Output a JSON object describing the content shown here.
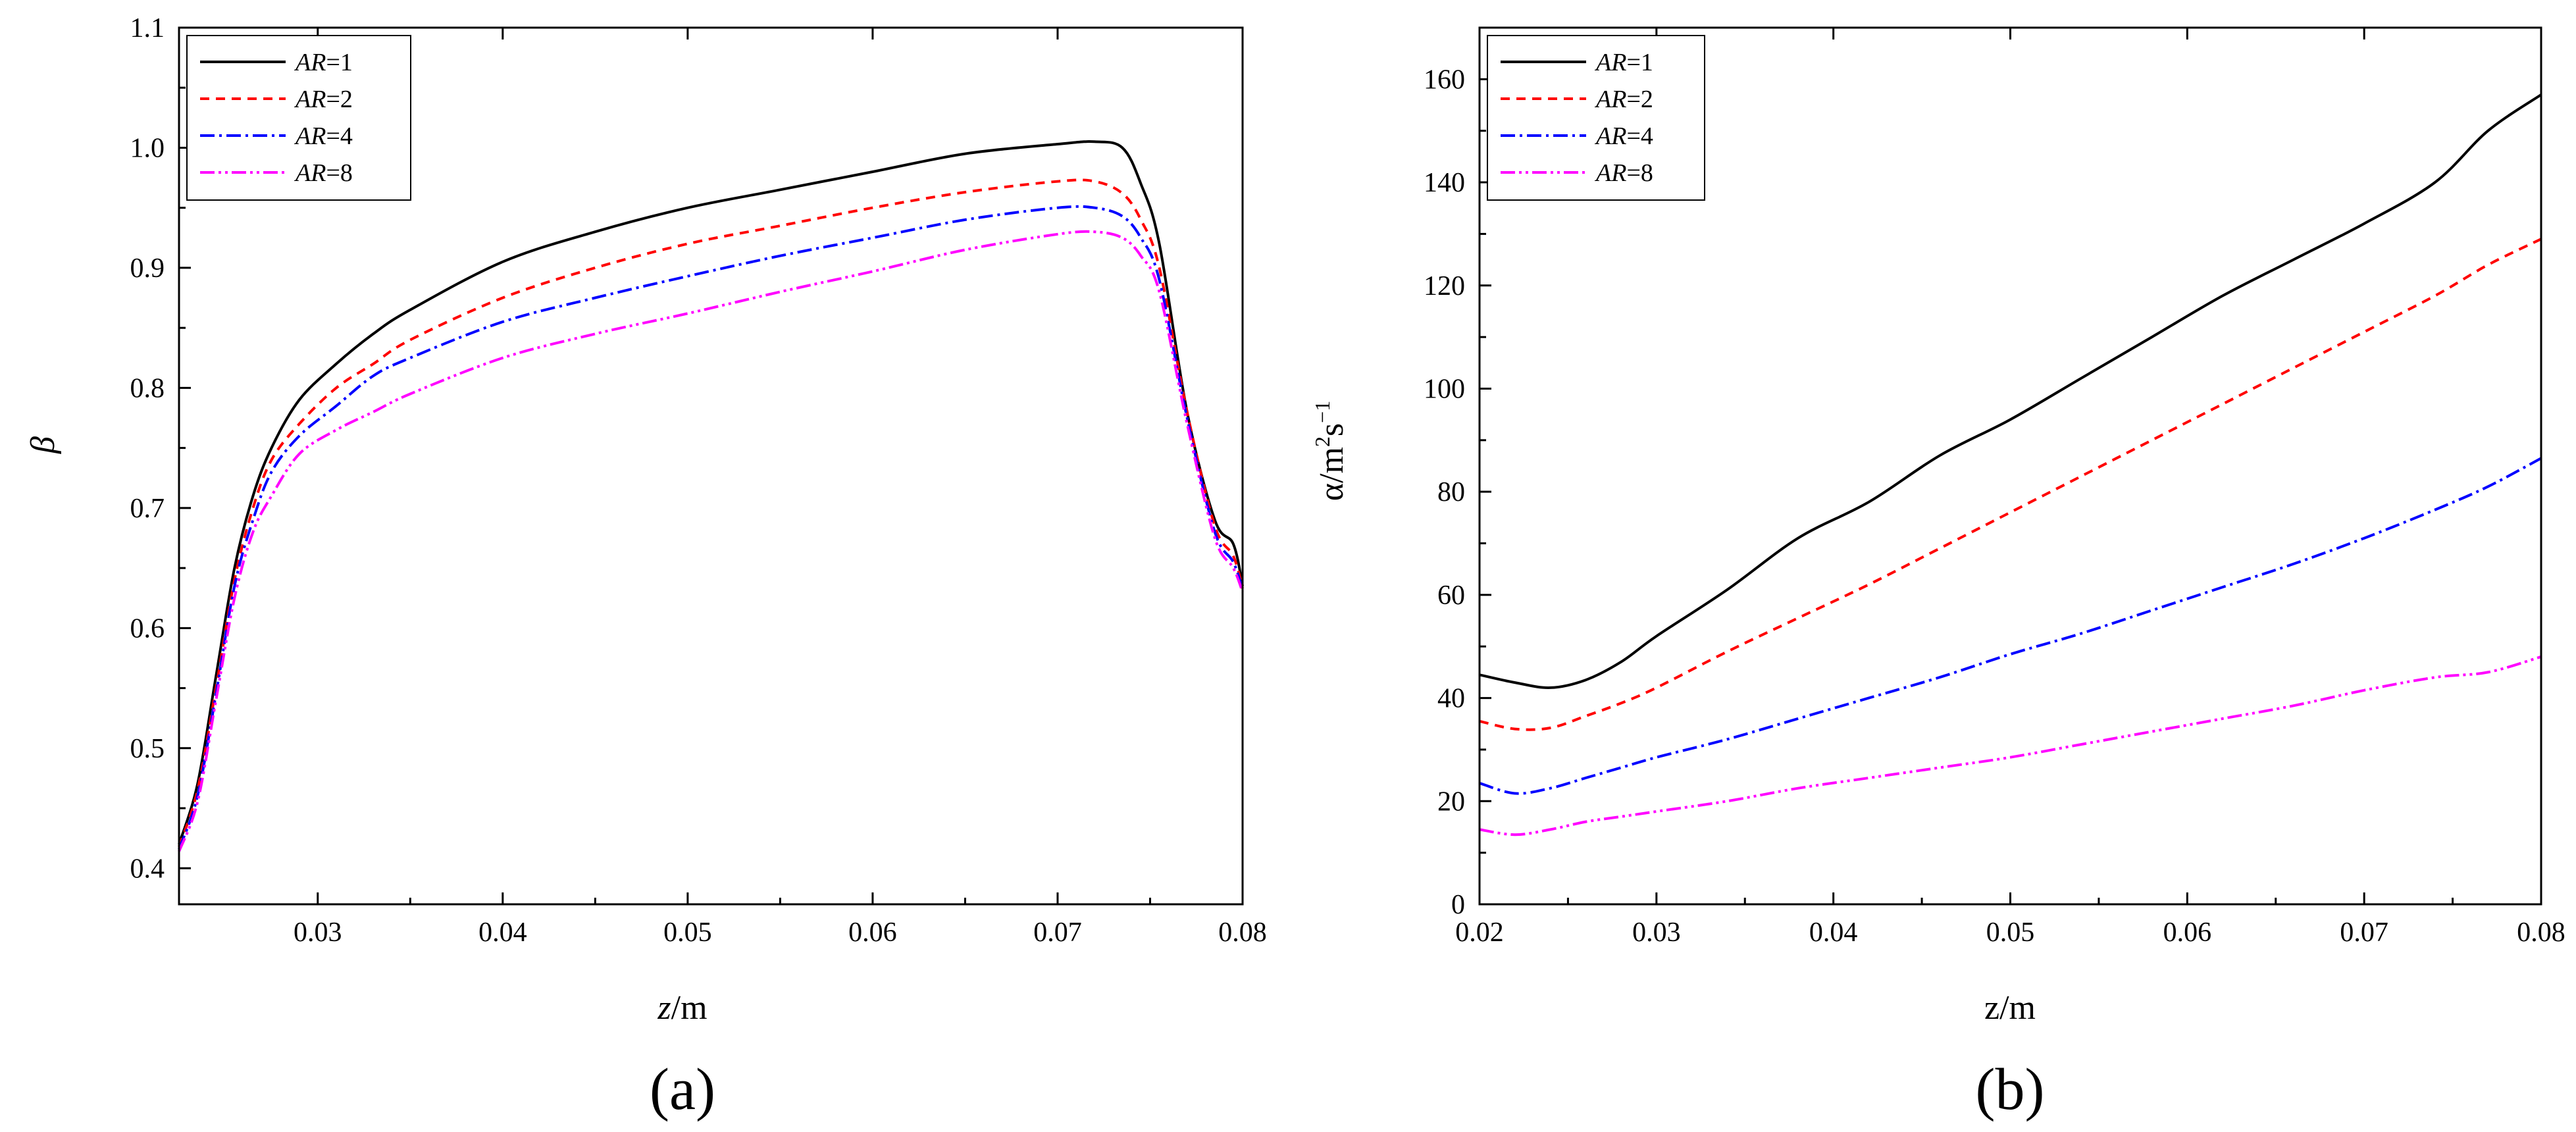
{
  "chart_data": [
    {
      "type": "line",
      "panel_label": "(a)",
      "xlabel_italic": "z",
      "xlabel_unit": "/m",
      "ylabel": "β",
      "xlim": [
        0.0225,
        0.08
      ],
      "ylim": [
        0.37,
        1.1
      ],
      "xticks": [
        0.03,
        0.04,
        0.05,
        0.06,
        0.07,
        0.08
      ],
      "xtick_labels": [
        "0.03",
        "0.04",
        "0.05",
        "0.06",
        "0.07",
        "0.08"
      ],
      "yticks": [
        0.4,
        0.5,
        0.6,
        0.7,
        0.8,
        0.9,
        1.0,
        1.1
      ],
      "ytick_labels": [
        "0.4",
        "0.5",
        "0.6",
        "0.7",
        "0.8",
        "0.9",
        "1.0",
        "1.1"
      ],
      "x": [
        0.0225,
        0.0235,
        0.0245,
        0.0255,
        0.0265,
        0.0275,
        0.029,
        0.031,
        0.033,
        0.035,
        0.04,
        0.045,
        0.05,
        0.055,
        0.06,
        0.065,
        0.07,
        0.072,
        0.0735,
        0.0745,
        0.0755,
        0.077,
        0.0785,
        0.0795,
        0.08
      ],
      "series": [
        {
          "name": "1",
          "color": "#000000",
          "dash": "",
          "values": [
            0.42,
            0.47,
            0.56,
            0.65,
            0.71,
            0.75,
            0.79,
            0.82,
            0.845,
            0.865,
            0.905,
            0.93,
            0.95,
            0.965,
            0.98,
            0.995,
            1.003,
            1.005,
            1.0,
            0.97,
            0.92,
            0.78,
            0.69,
            0.67,
            0.635
          ]
        },
        {
          "name": "2",
          "color": "#ff0000",
          "dash": "14,10",
          "values": [
            0.418,
            0.465,
            0.55,
            0.64,
            0.7,
            0.74,
            0.77,
            0.8,
            0.82,
            0.84,
            0.875,
            0.9,
            0.92,
            0.935,
            0.95,
            0.963,
            0.972,
            0.972,
            0.962,
            0.94,
            0.9,
            0.78,
            0.685,
            0.66,
            0.633
          ]
        },
        {
          "name": "4",
          "color": "#0000ff",
          "dash": "22,7,4,7",
          "values": [
            0.416,
            0.46,
            0.545,
            0.635,
            0.69,
            0.73,
            0.76,
            0.785,
            0.81,
            0.825,
            0.855,
            0.875,
            0.893,
            0.91,
            0.925,
            0.94,
            0.95,
            0.95,
            0.943,
            0.925,
            0.89,
            0.775,
            0.68,
            0.655,
            0.632
          ]
        },
        {
          "name": "8",
          "color": "#ff00ff",
          "dash": "22,6,4,6,4,6",
          "values": [
            0.414,
            0.455,
            0.54,
            0.625,
            0.68,
            0.71,
            0.745,
            0.765,
            0.78,
            0.795,
            0.825,
            0.845,
            0.862,
            0.88,
            0.897,
            0.915,
            0.928,
            0.93,
            0.925,
            0.91,
            0.88,
            0.77,
            0.675,
            0.65,
            0.63
          ]
        }
      ],
      "legend": {
        "position": "top-left",
        "prefix": "AR",
        "entries": [
          "=1",
          "=2",
          "=4",
          "=8"
        ]
      }
    },
    {
      "type": "line",
      "panel_label": "(b)",
      "xlabel": "z/m",
      "ylabel_base": "α/m",
      "ylabel_sup1": "2",
      "ylabel_mid": "s",
      "ylabel_sup2": "−1",
      "xlim": [
        0.02,
        0.08
      ],
      "ylim": [
        0,
        170
      ],
      "xticks": [
        0.02,
        0.03,
        0.04,
        0.05,
        0.06,
        0.07,
        0.08
      ],
      "xtick_labels": [
        "0.02",
        "0.03",
        "0.04",
        "0.05",
        "0.06",
        "0.07",
        "0.08"
      ],
      "yticks": [
        0,
        20,
        40,
        60,
        80,
        100,
        120,
        140,
        160
      ],
      "ytick_labels": [
        "0",
        "20",
        "40",
        "60",
        "80",
        "100",
        "120",
        "140",
        "160"
      ],
      "x": [
        0.02,
        0.022,
        0.024,
        0.026,
        0.028,
        0.03,
        0.034,
        0.038,
        0.042,
        0.046,
        0.05,
        0.054,
        0.058,
        0.062,
        0.066,
        0.07,
        0.074,
        0.077,
        0.08
      ],
      "series": [
        {
          "name": "1",
          "color": "#000000",
          "dash": "",
          "values": [
            44.5,
            43,
            42,
            43.5,
            47,
            52,
            61,
            71,
            78,
            87,
            94,
            102,
            110,
            118,
            125,
            132,
            140,
            150,
            157
          ]
        },
        {
          "name": "2",
          "color": "#ff0000",
          "dash": "14,10",
          "values": [
            35.5,
            34,
            34.2,
            36.5,
            39,
            42,
            49,
            55.5,
            62,
            69,
            76,
            83,
            90,
            97,
            104,
            111,
            118,
            124,
            129
          ]
        },
        {
          "name": "4",
          "color": "#0000ff",
          "dash": "22,7,4,7",
          "values": [
            23.5,
            21.5,
            22.5,
            24.5,
            26.5,
            28.5,
            32,
            36,
            40,
            44,
            48.5,
            52.5,
            57,
            61.5,
            66,
            71,
            76.5,
            81,
            86.5
          ]
        },
        {
          "name": "8",
          "color": "#ff00ff",
          "dash": "22,6,4,6,4,6",
          "values": [
            14.5,
            13.5,
            14.5,
            16,
            17,
            18,
            20,
            22.5,
            24.5,
            26.5,
            28.5,
            31,
            33.5,
            36,
            38.5,
            41.5,
            44,
            45,
            48
          ]
        }
      ],
      "legend": {
        "position": "top-left",
        "prefix": "AR",
        "entries": [
          "=1",
          "=2",
          "=4",
          "=8"
        ]
      }
    }
  ]
}
